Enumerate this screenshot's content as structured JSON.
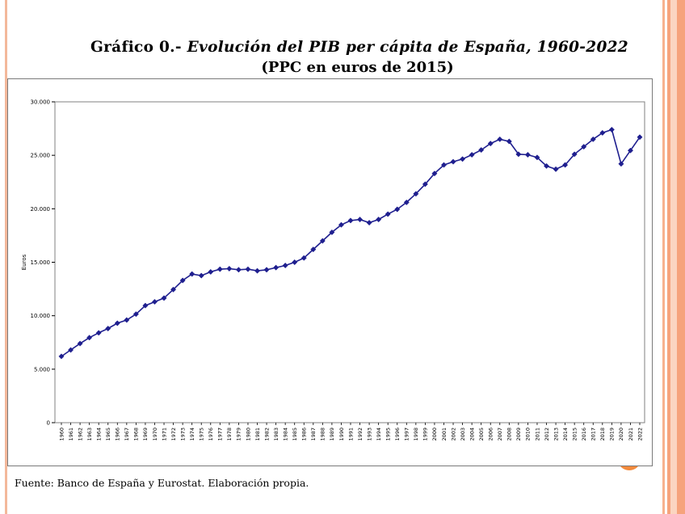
{
  "title": {
    "lead": "Gráfico 0.-",
    "rest": "Evolución del PIB per cápita de España, 1960-2022"
  },
  "subtitle": "(PPC en euros de 2015)",
  "source": "Fuente: Banco de España y Eurostat. Elaboración propia.",
  "colors": {
    "line": "#1f1f8f",
    "marker": "#1f1f8f",
    "accent_border": "#f6a37c"
  },
  "chart_data": {
    "type": "line",
    "title": "Gráfico 0.- Evolución del PIB per cápita de España, 1960-2022",
    "subtitle": "(PPC en euros de 2015)",
    "xlabel": "",
    "ylabel": "Euros",
    "ylim": [
      0,
      30000
    ],
    "yticks": [
      0,
      5000,
      10000,
      15000,
      20000,
      25000,
      30000
    ],
    "ytick_labels": [
      "0",
      "5.000",
      "10.000",
      "15.000",
      "20.000",
      "25.000",
      "30.000"
    ],
    "grid": false,
    "legend": "none",
    "categories": [
      "1960",
      "1961",
      "1962",
      "1963",
      "1964",
      "1965",
      "1966",
      "1967",
      "1968",
      "1969",
      "1970",
      "1971",
      "1972",
      "1973",
      "1974",
      "1975",
      "1976",
      "1977",
      "1978",
      "1979",
      "1980",
      "1981",
      "1982",
      "1983",
      "1984",
      "1985",
      "1986",
      "1987",
      "1988",
      "1989",
      "1990",
      "1991",
      "1992",
      "1993",
      "1994",
      "1995",
      "1996",
      "1997",
      "1998",
      "1999",
      "2000",
      "2001",
      "2002",
      "2003",
      "2004",
      "2005",
      "2006",
      "2007",
      "2008",
      "2009",
      "2010",
      "2011",
      "2012",
      "2013",
      "2014",
      "2015",
      "2016",
      "2017",
      "2018",
      "2019",
      "2020",
      "2021",
      "2022"
    ],
    "series": [
      {
        "name": "",
        "values": [
          6200,
          6800,
          7400,
          7950,
          8400,
          8800,
          9300,
          9600,
          10150,
          10950,
          11300,
          11650,
          12450,
          13300,
          13900,
          13750,
          14100,
          14350,
          14400,
          14300,
          14350,
          14200,
          14300,
          14500,
          14700,
          15000,
          15400,
          16200,
          17000,
          17800,
          18500,
          18900,
          19000,
          18700,
          19000,
          19500,
          19950,
          20600,
          21400,
          22300,
          23300,
          24100,
          24400,
          24650,
          25050,
          25500,
          26100,
          26500,
          26300,
          25100,
          25050,
          24800,
          24000,
          23700,
          24100,
          25100,
          25800,
          26500,
          27100,
          27400,
          24200,
          25450,
          26700
        ]
      }
    ]
  }
}
